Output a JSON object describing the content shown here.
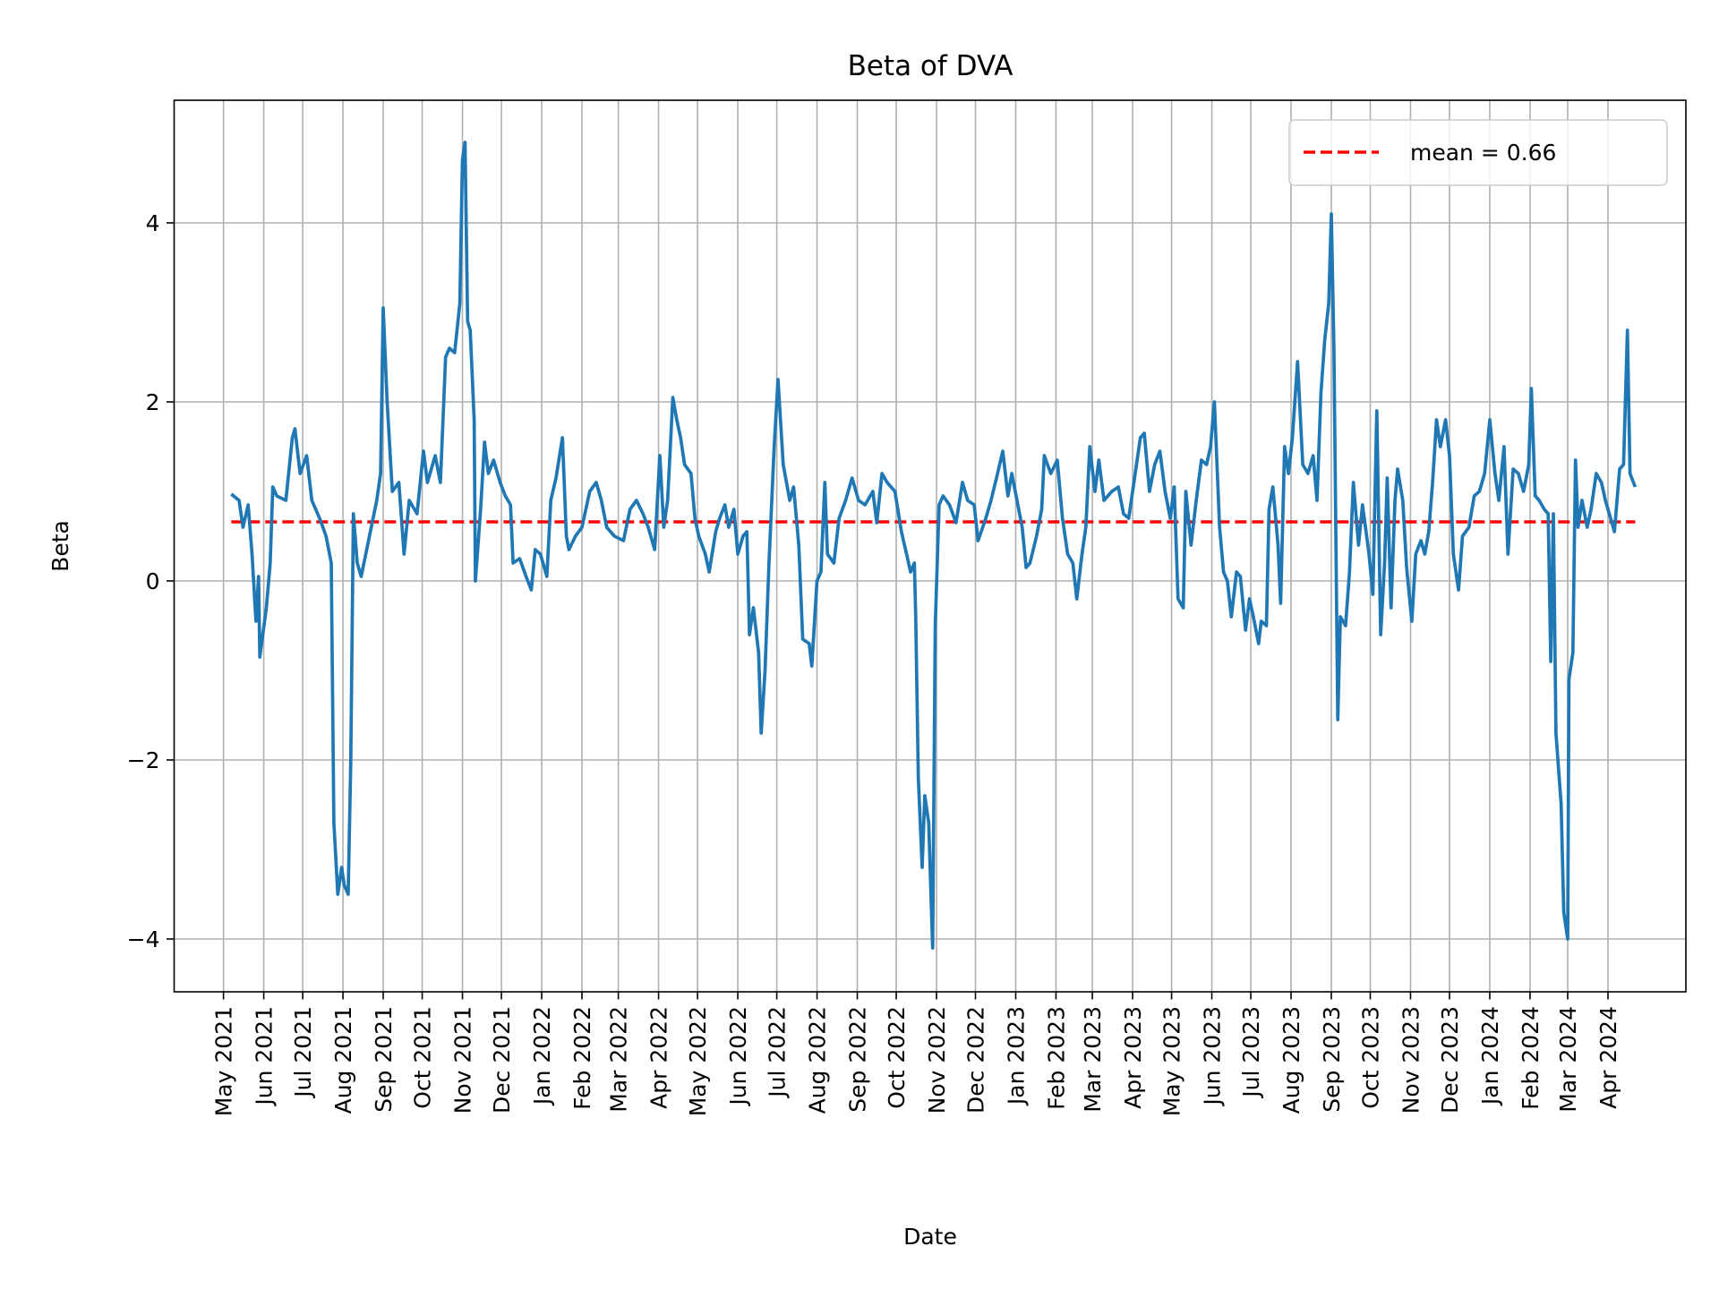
{
  "chart_data": {
    "type": "line",
    "title": "Beta of DVA",
    "xlabel": "Date",
    "ylabel": "Beta",
    "ylim": [
      -4.59,
      5.37
    ],
    "xlim": [
      "2021-03-24",
      "2024-05-31"
    ],
    "grid": true,
    "legend_position": "top-right",
    "yticks": [
      -4,
      -2,
      0,
      2,
      4
    ],
    "ytick_labels": [
      "−4",
      "−2",
      "0",
      "2",
      "4"
    ],
    "xticks": [
      "2021-05-01",
      "2021-06-01",
      "2021-07-01",
      "2021-08-01",
      "2021-09-01",
      "2021-10-01",
      "2021-11-01",
      "2021-12-01",
      "2022-01-01",
      "2022-02-01",
      "2022-03-01",
      "2022-04-01",
      "2022-05-01",
      "2022-06-01",
      "2022-07-01",
      "2022-08-01",
      "2022-09-01",
      "2022-10-01",
      "2022-11-01",
      "2022-12-01",
      "2023-01-01",
      "2023-02-01",
      "2023-03-01",
      "2023-04-01",
      "2023-05-01",
      "2023-06-01",
      "2023-07-01",
      "2023-08-01",
      "2023-09-01",
      "2023-10-01",
      "2023-11-01",
      "2023-12-01",
      "2024-01-01",
      "2024-02-01",
      "2024-03-01",
      "2024-04-01"
    ],
    "xtick_labels": [
      "May 2021",
      "Jun 2021",
      "Jul 2021",
      "Aug 2021",
      "Sep 2021",
      "Oct 2021",
      "Nov 2021",
      "Dec 2021",
      "Jan 2022",
      "Feb 2022",
      "Mar 2022",
      "Apr 2022",
      "May 2022",
      "Jun 2022",
      "Jul 2022",
      "Aug 2022",
      "Sep 2022",
      "Oct 2022",
      "Nov 2022",
      "Dec 2022",
      "Jan 2023",
      "Feb 2023",
      "Mar 2023",
      "Apr 2023",
      "May 2023",
      "Jun 2023",
      "Jul 2023",
      "Aug 2023",
      "Sep 2023",
      "Oct 2023",
      "Nov 2023",
      "Dec 2023",
      "Jan 2024",
      "Feb 2024",
      "Mar 2024",
      "Apr 2024"
    ],
    "series": [
      {
        "color": "#1f77b4",
        "x": [
          "2021-05-07",
          "2021-05-13",
          "2021-05-16",
          "2021-05-20",
          "2021-05-23",
          "2021-05-26",
          "2021-05-28",
          "2021-05-29",
          "2021-06-03",
          "2021-06-06",
          "2021-06-08",
          "2021-06-11",
          "2021-06-18",
          "2021-06-23",
          "2021-06-25",
          "2021-06-29",
          "2021-07-04",
          "2021-07-08",
          "2021-07-14",
          "2021-07-19",
          "2021-07-23",
          "2021-07-25",
          "2021-07-28",
          "2021-07-31",
          "2021-08-02",
          "2021-08-05",
          "2021-08-07",
          "2021-08-09",
          "2021-08-12",
          "2021-08-15",
          "2021-08-20",
          "2021-08-27",
          "2021-08-30",
          "2021-09-01",
          "2021-09-04",
          "2021-09-08",
          "2021-09-13",
          "2021-09-17",
          "2021-09-21",
          "2021-09-27",
          "2021-10-02",
          "2021-10-05",
          "2021-10-11",
          "2021-10-15",
          "2021-10-19",
          "2021-10-22",
          "2021-10-26",
          "2021-10-30",
          "2021-11-01",
          "2021-11-03",
          "2021-11-05",
          "2021-11-07",
          "2021-11-10",
          "2021-11-11",
          "2021-11-15",
          "2021-11-18",
          "2021-11-21",
          "2021-11-25",
          "2021-11-30",
          "2021-12-04",
          "2021-12-08",
          "2021-12-10",
          "2021-12-15",
          "2021-12-20",
          "2021-12-24",
          "2021-12-27",
          "2021-12-31",
          "2022-01-05",
          "2022-01-08",
          "2022-01-12",
          "2022-01-17",
          "2022-01-20",
          "2022-01-22",
          "2022-01-27",
          "2022-02-01",
          "2022-02-07",
          "2022-02-12",
          "2022-02-16",
          "2022-02-20",
          "2022-02-26",
          "2022-03-05",
          "2022-03-10",
          "2022-03-15",
          "2022-03-20",
          "2022-03-24",
          "2022-03-29",
          "2022-04-02",
          "2022-04-05",
          "2022-04-08",
          "2022-04-12",
          "2022-04-15",
          "2022-04-18",
          "2022-04-21",
          "2022-04-26",
          "2022-04-29",
          "2022-05-02",
          "2022-05-07",
          "2022-05-10",
          "2022-05-15",
          "2022-05-18",
          "2022-05-22",
          "2022-05-25",
          "2022-05-29",
          "2022-06-01",
          "2022-06-05",
          "2022-06-08",
          "2022-06-10",
          "2022-06-13",
          "2022-06-17",
          "2022-06-19",
          "2022-06-22",
          "2022-06-25",
          "2022-06-29",
          "2022-07-02",
          "2022-07-06",
          "2022-07-11",
          "2022-07-14",
          "2022-07-18",
          "2022-07-21",
          "2022-07-26",
          "2022-07-28",
          "2022-08-01",
          "2022-08-04",
          "2022-08-07",
          "2022-08-09",
          "2022-08-14",
          "2022-08-18",
          "2022-08-23",
          "2022-08-28",
          "2022-09-02",
          "2022-09-07",
          "2022-09-13",
          "2022-09-16",
          "2022-09-20",
          "2022-09-24",
          "2022-09-30",
          "2022-10-05",
          "2022-10-09",
          "2022-10-12",
          "2022-10-15",
          "2022-10-16",
          "2022-10-18",
          "2022-10-21",
          "2022-10-23",
          "2022-10-26",
          "2022-10-29",
          "2022-10-31",
          "2022-11-03",
          "2022-11-06",
          "2022-11-11",
          "2022-11-16",
          "2022-11-21",
          "2022-11-25",
          "2022-11-30",
          "2022-12-03",
          "2022-12-09",
          "2022-12-13",
          "2022-12-18",
          "2022-12-22",
          "2022-12-26",
          "2022-12-29",
          "2023-01-02",
          "2023-01-06",
          "2023-01-09",
          "2023-01-12",
          "2023-01-17",
          "2023-01-21",
          "2023-01-23",
          "2023-01-28",
          "2023-02-02",
          "2023-02-06",
          "2023-02-10",
          "2023-02-14",
          "2023-02-17",
          "2023-02-21",
          "2023-02-24",
          "2023-02-27",
          "2023-03-03",
          "2023-03-06",
          "2023-03-10",
          "2023-03-16",
          "2023-03-21",
          "2023-03-25",
          "2023-03-29",
          "2023-04-02",
          "2023-04-07",
          "2023-04-10",
          "2023-04-14",
          "2023-04-18",
          "2023-04-22",
          "2023-04-26",
          "2023-04-30",
          "2023-05-03",
          "2023-05-06",
          "2023-05-10",
          "2023-05-12",
          "2023-05-16",
          "2023-05-20",
          "2023-05-24",
          "2023-05-28",
          "2023-05-31",
          "2023-06-03",
          "2023-06-07",
          "2023-06-10",
          "2023-06-13",
          "2023-06-16",
          "2023-06-20",
          "2023-06-23",
          "2023-06-27",
          "2023-06-30",
          "2023-07-03",
          "2023-07-07",
          "2023-07-09",
          "2023-07-13",
          "2023-07-15",
          "2023-07-18",
          "2023-07-22",
          "2023-07-24",
          "2023-07-27",
          "2023-07-30",
          "2023-08-02",
          "2023-08-06",
          "2023-08-10",
          "2023-08-14",
          "2023-08-18",
          "2023-08-21",
          "2023-08-24",
          "2023-08-27",
          "2023-08-30",
          "2023-09-01",
          "2023-09-03",
          "2023-09-06",
          "2023-09-08",
          "2023-09-12",
          "2023-09-15",
          "2023-09-18",
          "2023-09-22",
          "2023-09-25",
          "2023-09-30",
          "2023-10-03",
          "2023-10-06",
          "2023-10-09",
          "2023-10-12",
          "2023-10-14",
          "2023-10-17",
          "2023-10-20",
          "2023-10-22",
          "2023-10-26",
          "2023-10-29",
          "2023-11-02",
          "2023-11-05",
          "2023-11-09",
          "2023-11-12",
          "2023-11-15",
          "2023-11-18",
          "2023-11-21",
          "2023-11-24",
          "2023-11-28",
          "2023-12-01",
          "2023-12-04",
          "2023-12-08",
          "2023-12-11",
          "2023-12-16",
          "2023-12-20",
          "2023-12-24",
          "2023-12-28",
          "2024-01-01",
          "2024-01-05",
          "2024-01-08",
          "2024-01-12",
          "2024-01-15",
          "2024-01-19",
          "2024-01-23",
          "2024-01-27",
          "2024-01-31",
          "2024-02-02",
          "2024-02-05",
          "2024-02-08",
          "2024-02-12",
          "2024-02-15",
          "2024-02-17",
          "2024-02-19",
          "2024-02-21",
          "2024-02-25",
          "2024-02-27",
          "2024-03-01",
          "2024-03-02",
          "2024-03-05",
          "2024-03-07",
          "2024-03-09",
          "2024-03-12",
          "2024-03-16",
          "2024-03-19",
          "2024-03-23",
          "2024-03-27",
          "2024-03-30",
          "2024-04-03",
          "2024-04-06",
          "2024-04-10",
          "2024-04-13",
          "2024-04-16",
          "2024-04-18",
          "2024-04-22"
        ],
        "y": [
          0.97,
          0.9,
          0.6,
          0.85,
          0.3,
          -0.45,
          0.05,
          -0.85,
          -0.3,
          0.2,
          1.05,
          0.95,
          0.9,
          1.6,
          1.7,
          1.2,
          1.4,
          0.9,
          0.7,
          0.5,
          0.2,
          -2.7,
          -3.5,
          -3.2,
          -3.4,
          -3.5,
          -2.0,
          0.75,
          0.2,
          0.05,
          0.4,
          0.9,
          1.2,
          3.05,
          2.0,
          1.0,
          1.1,
          0.3,
          0.9,
          0.75,
          1.45,
          1.1,
          1.4,
          1.1,
          2.5,
          2.6,
          2.55,
          3.1,
          4.7,
          4.9,
          2.9,
          2.8,
          1.8,
          0.0,
          0.8,
          1.55,
          1.2,
          1.35,
          1.1,
          0.95,
          0.85,
          0.2,
          0.25,
          0.05,
          -0.1,
          0.35,
          0.3,
          0.05,
          0.9,
          1.15,
          1.6,
          0.5,
          0.35,
          0.5,
          0.6,
          1.0,
          1.1,
          0.9,
          0.6,
          0.5,
          0.45,
          0.8,
          0.9,
          0.75,
          0.6,
          0.35,
          1.4,
          0.6,
          0.9,
          2.05,
          1.8,
          1.6,
          1.3,
          1.2,
          0.7,
          0.5,
          0.3,
          0.1,
          0.55,
          0.7,
          0.85,
          0.6,
          0.8,
          0.3,
          0.5,
          0.55,
          -0.6,
          -0.3,
          -0.8,
          -1.7,
          -1.0,
          0.2,
          1.5,
          2.25,
          1.3,
          0.9,
          1.05,
          0.4,
          -0.65,
          -0.7,
          -0.95,
          0.0,
          0.1,
          1.1,
          0.3,
          0.2,
          0.7,
          0.9,
          1.15,
          0.9,
          0.85,
          1.0,
          0.65,
          1.2,
          1.1,
          1.0,
          0.55,
          0.3,
          0.1,
          0.2,
          -0.4,
          -2.2,
          -3.2,
          -2.4,
          -2.7,
          -4.1,
          -0.5,
          0.85,
          0.95,
          0.85,
          0.65,
          1.1,
          0.9,
          0.85,
          0.45,
          0.7,
          0.9,
          1.2,
          1.45,
          0.95,
          1.2,
          0.9,
          0.6,
          0.15,
          0.2,
          0.5,
          0.8,
          1.4,
          1.2,
          1.35,
          0.7,
          0.3,
          0.2,
          -0.2,
          0.3,
          0.6,
          1.5,
          1.0,
          1.35,
          0.9,
          1.0,
          1.05,
          0.75,
          0.7,
          1.1,
          1.6,
          1.65,
          1.0,
          1.3,
          1.45,
          1.0,
          0.7,
          1.05,
          -0.2,
          -0.3,
          1.0,
          0.4,
          0.9,
          1.35,
          1.3,
          1.5,
          2.0,
          0.6,
          0.1,
          0.0,
          -0.4,
          0.1,
          0.05,
          -0.55,
          -0.2,
          -0.4,
          -0.7,
          -0.45,
          -0.5,
          0.8,
          1.05,
          0.4,
          -0.25,
          1.5,
          1.2,
          1.6,
          2.45,
          1.3,
          1.2,
          1.4,
          0.9,
          2.1,
          2.7,
          3.1,
          4.1,
          2.6,
          -1.55,
          -0.4,
          -0.5,
          0.1,
          1.1,
          0.4,
          0.85,
          0.3,
          -0.15,
          1.9,
          -0.6,
          0.2,
          1.15,
          -0.3,
          0.9,
          1.25,
          0.9,
          0.15,
          -0.45,
          0.3,
          0.45,
          0.3,
          0.55,
          1.1,
          1.8,
          1.5,
          1.8,
          1.4,
          0.3,
          -0.1,
          0.5,
          0.6,
          0.95,
          1.0,
          1.2,
          1.8,
          1.2,
          0.9,
          1.5,
          0.3,
          1.25,
          1.2,
          1.0,
          1.3,
          2.15,
          0.95,
          0.9,
          0.8,
          0.75,
          -0.9,
          0.75,
          -1.7,
          -2.5,
          -3.7,
          -4.0,
          -1.1,
          -0.8,
          1.35,
          0.6,
          0.9,
          0.6,
          0.8,
          1.2,
          1.1,
          0.9,
          0.7,
          0.55,
          1.25,
          1.3,
          2.8,
          1.2,
          1.05
        ]
      }
    ],
    "mean_line": {
      "value": 0.66,
      "color": "#ff0000",
      "style": "dashed",
      "label": "mean = 0.66",
      "x_range": [
        "2021-05-07",
        "2024-04-22"
      ]
    }
  }
}
